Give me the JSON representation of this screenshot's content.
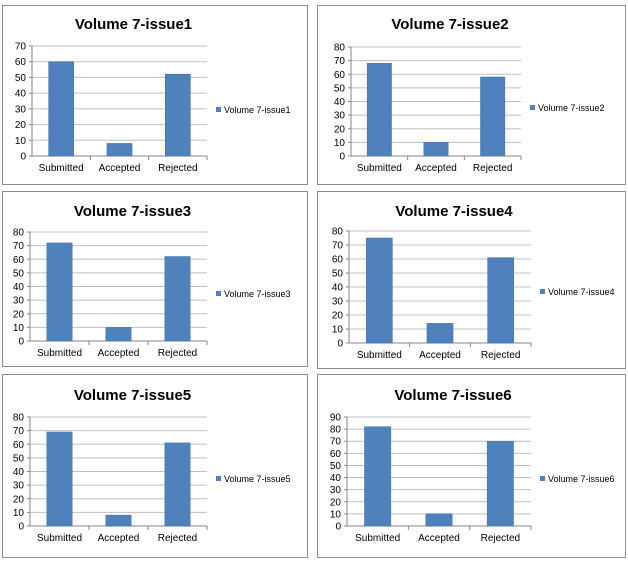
{
  "chart_data": [
    {
      "type": "bar",
      "title": "Volume 7-issue1",
      "categories": [
        "Submitted",
        "Accepted",
        "Rejected"
      ],
      "series": [
        {
          "name": "Volume 7-issue1",
          "values": [
            60,
            8,
            52
          ]
        }
      ],
      "ylim": [
        0,
        70
      ],
      "yticks": [
        0,
        10,
        20,
        30,
        40,
        50,
        60,
        70
      ],
      "color": "#4f81bd",
      "grid": true,
      "legend": "right"
    },
    {
      "type": "bar",
      "title": "Volume 7-issue2",
      "categories": [
        "Submitted",
        "Accepted",
        "Rejected"
      ],
      "series": [
        {
          "name": "Volume 7-issue2",
          "values": [
            68,
            10,
            58
          ]
        }
      ],
      "ylim": [
        0,
        80
      ],
      "yticks": [
        0,
        10,
        20,
        30,
        40,
        50,
        60,
        70,
        80
      ],
      "color": "#4f81bd",
      "grid": true,
      "legend": "right"
    },
    {
      "type": "bar",
      "title": "Volume 7-issue3",
      "categories": [
        "Submitted",
        "Accepted",
        "Rejected"
      ],
      "series": [
        {
          "name": "Volume 7-issue3",
          "values": [
            72,
            10,
            62
          ]
        }
      ],
      "ylim": [
        0,
        80
      ],
      "yticks": [
        0,
        10,
        20,
        30,
        40,
        50,
        60,
        70,
        80
      ],
      "color": "#4f81bd",
      "grid": true,
      "legend": "right"
    },
    {
      "type": "bar",
      "title": "Volume 7-issue4",
      "categories": [
        "Submitted",
        "Accepted",
        "Rejected"
      ],
      "series": [
        {
          "name": "Volume 7-issue4",
          "values": [
            75,
            14,
            61
          ]
        }
      ],
      "ylim": [
        0,
        80
      ],
      "yticks": [
        0,
        10,
        20,
        30,
        40,
        50,
        60,
        70,
        80
      ],
      "color": "#4f81bd",
      "grid": true,
      "legend": "right"
    },
    {
      "type": "bar",
      "title": "Volume 7-issue5",
      "categories": [
        "Submitted",
        "Accepted",
        "Rejected"
      ],
      "series": [
        {
          "name": "Volume 7-issue5",
          "values": [
            69,
            8,
            61
          ]
        }
      ],
      "ylim": [
        0,
        80
      ],
      "yticks": [
        0,
        10,
        20,
        30,
        40,
        50,
        60,
        70,
        80
      ],
      "color": "#4f81bd",
      "grid": true,
      "legend": "right"
    },
    {
      "type": "bar",
      "title": "Volume 7-issue6",
      "categories": [
        "Submitted",
        "Accepted",
        "Rejected"
      ],
      "series": [
        {
          "name": "Volume 7-issue6",
          "values": [
            82,
            10,
            70
          ]
        }
      ],
      "ylim": [
        0,
        90
      ],
      "yticks": [
        0,
        10,
        20,
        30,
        40,
        50,
        60,
        70,
        80,
        90
      ],
      "color": "#4f81bd",
      "grid": true,
      "legend": "right"
    }
  ]
}
